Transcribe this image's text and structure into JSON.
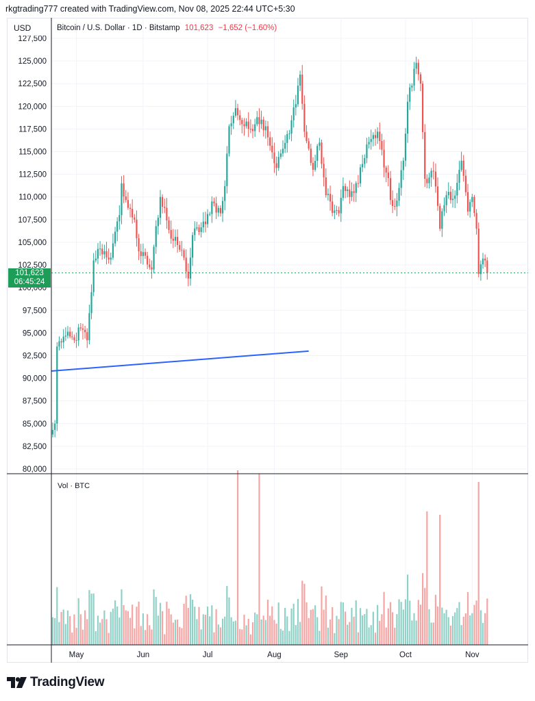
{
  "header": {
    "text": "rkgtrading777 created with TradingView.com, Nov 08, 2025 22:44 UTC+5:30"
  },
  "currency": "USD",
  "legend": {
    "symbol": "Bitcoin / U.S. Dollar · 1D · Bitstamp",
    "last": "101,623",
    "change": "−1,652 (−1.60%)"
  },
  "price_tag": {
    "price": "101,623",
    "countdown": "06:45:24"
  },
  "volume_label": "Vol · BTC",
  "brand": "TradingView",
  "colors": {
    "up": "#26a69a",
    "down": "#ef5350",
    "up_vol": "#8fd1c6",
    "down_vol": "#f5a5a3",
    "trendline": "#2962ff",
    "grid": "#f0f3fa",
    "last_price": "#1e9d59"
  },
  "chart_data": {
    "type": "candlestick",
    "title": "Bitcoin / U.S. Dollar · 1D · Bitstamp",
    "y_axis": {
      "ticks": [
        "80,000",
        "82,500",
        "85,000",
        "87,500",
        "90,000",
        "92,500",
        "95,000",
        "97,500",
        "100,000",
        "102,500",
        "105,000",
        "107,500",
        "110,000",
        "112,500",
        "115,000",
        "117,500",
        "120,000",
        "122,500",
        "125,000",
        "127,500"
      ],
      "range": [
        80000,
        127500
      ]
    },
    "x_axis": {
      "ticks": [
        "May",
        "Jun",
        "Jul",
        "Aug",
        "Sep",
        "Oct",
        "Nov"
      ]
    },
    "last_price": 101623,
    "trendline": {
      "from": {
        "date": "2025-04-21",
        "price": 90800
      },
      "to": {
        "date": "2025-08-17",
        "price": 93000
      }
    },
    "series": [
      {
        "name": "price",
        "anchors": [
          [
            "2025-04-20",
            84300
          ],
          [
            "2025-04-21",
            85000
          ],
          [
            "2025-04-22",
            93500
          ],
          [
            "2025-04-25",
            94600
          ],
          [
            "2025-04-30",
            94200
          ],
          [
            "2025-05-03",
            95500
          ],
          [
            "2025-05-06",
            94200
          ],
          [
            "2025-05-08",
            99500
          ],
          [
            "2025-05-09",
            103000
          ],
          [
            "2025-05-12",
            104300
          ],
          [
            "2025-05-17",
            103300
          ],
          [
            "2025-05-21",
            108000
          ],
          [
            "2025-05-22",
            111500
          ],
          [
            "2025-05-25",
            108800
          ],
          [
            "2025-05-28",
            107500
          ],
          [
            "2025-05-30",
            104000
          ],
          [
            "2025-06-05",
            102000
          ],
          [
            "2025-06-06",
            104500
          ],
          [
            "2025-06-09",
            110000
          ],
          [
            "2025-06-11",
            108800
          ],
          [
            "2025-06-14",
            105400
          ],
          [
            "2025-06-17",
            104700
          ],
          [
            "2025-06-20",
            103300
          ],
          [
            "2025-06-22",
            101000
          ],
          [
            "2025-06-24",
            105800
          ],
          [
            "2025-06-30",
            107000
          ],
          [
            "2025-07-03",
            109500
          ],
          [
            "2025-07-07",
            108200
          ],
          [
            "2025-07-09",
            111200
          ],
          [
            "2025-07-11",
            117800
          ],
          [
            "2025-07-14",
            119800
          ],
          [
            "2025-07-16",
            118500
          ],
          [
            "2025-07-18",
            117800
          ],
          [
            "2025-07-21",
            117500
          ],
          [
            "2025-07-24",
            118800
          ],
          [
            "2025-07-28",
            117800
          ],
          [
            "2025-08-02",
            113200
          ],
          [
            "2025-08-04",
            114800
          ],
          [
            "2025-08-08",
            117000
          ],
          [
            "2025-08-13",
            123500
          ],
          [
            "2025-08-15",
            117200
          ],
          [
            "2025-08-19",
            113000
          ],
          [
            "2025-08-22",
            116000
          ],
          [
            "2025-08-25",
            110200
          ],
          [
            "2025-08-29",
            108500
          ],
          [
            "2025-08-31",
            108200
          ],
          [
            "2025-09-02",
            111200
          ],
          [
            "2025-09-05",
            110000
          ],
          [
            "2025-09-09",
            111500
          ],
          [
            "2025-09-13",
            115800
          ],
          [
            "2025-09-17",
            116500
          ],
          [
            "2025-09-18",
            117200
          ],
          [
            "2025-09-22",
            112700
          ],
          [
            "2025-09-25",
            109000
          ],
          [
            "2025-09-27",
            109600
          ],
          [
            "2025-09-30",
            114000
          ],
          [
            "2025-10-02",
            120500
          ],
          [
            "2025-10-06",
            124800
          ],
          [
            "2025-10-08",
            122500
          ],
          [
            "2025-10-10",
            112000
          ],
          [
            "2025-10-14",
            112800
          ],
          [
            "2025-10-17",
            106500
          ],
          [
            "2025-10-20",
            110200
          ],
          [
            "2025-10-23",
            109800
          ],
          [
            "2025-10-27",
            114000
          ],
          [
            "2025-10-30",
            108400
          ],
          [
            "2025-11-01",
            110000
          ],
          [
            "2025-11-03",
            106500
          ],
          [
            "2025-11-04",
            101500
          ],
          [
            "2025-11-06",
            103200
          ],
          [
            "2025-11-08",
            101623
          ]
        ]
      },
      {
        "name": "Vol · BTC",
        "spikes": [
          [
            "2025-07-15",
            255
          ],
          [
            "2025-07-25",
            250
          ],
          [
            "2025-10-11",
            195
          ],
          [
            "2025-10-17",
            190
          ],
          [
            "2025-11-04",
            238
          ]
        ]
      }
    ]
  }
}
